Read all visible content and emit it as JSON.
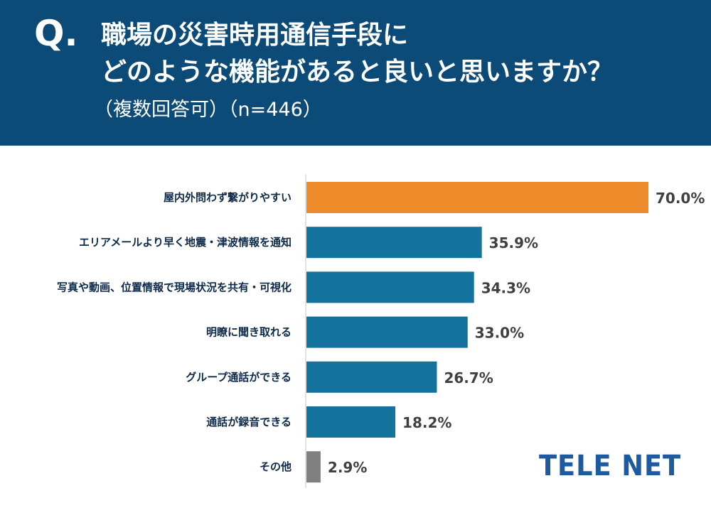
{
  "header": {
    "q_mark": "Q.",
    "line1": "職場の災害時用通信手段に",
    "line2": "どのような機能があると良いと思いますか？",
    "sub": "（複数回答可）（n=446）"
  },
  "logo": "TELE NET",
  "colors": {
    "header_bg": "#0c4a78",
    "highlight": "#ee8a2a",
    "bar": "#13739c",
    "other": "#808080",
    "axis": "#d9d9d9"
  },
  "chart_data": {
    "type": "bar",
    "orientation": "horizontal",
    "title": "職場の災害時用通信手段にどのような機能があると良いと思いますか？",
    "categories": [
      "屋内外問わず繋がりやすい",
      "エリアメールより早く地震・津波情報を通知",
      "写真や動画、位置情報で現場状況を共有・可視化",
      "明瞭に聞き取れる",
      "グループ通話ができる",
      "通話が録音できる",
      "その他"
    ],
    "values": [
      70.0,
      35.9,
      34.3,
      33.0,
      26.7,
      18.2,
      2.9
    ],
    "value_labels": [
      "70.0%",
      "35.9%",
      "34.3%",
      "33.0%",
      "26.7%",
      "18.2%",
      "2.9%"
    ],
    "unit": "%",
    "xlim": [
      0,
      70
    ],
    "xlabel": "",
    "ylabel": "",
    "grid": false
  }
}
